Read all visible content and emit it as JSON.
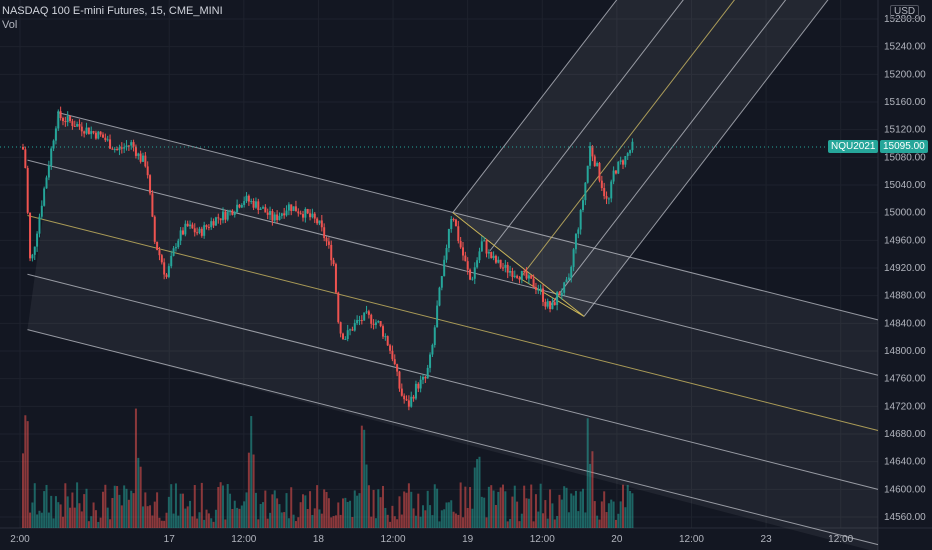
{
  "header": {
    "symbol_line": "NASDAQ 100 E-mini Futures, 15, CME_MINI",
    "vol_label": "Vol"
  },
  "currency": "USD",
  "colors": {
    "background": "#131722",
    "up": "#26a69a",
    "down": "#ef5350",
    "grid": "#1e222d",
    "pitchfork_median": "#c9b458",
    "pitchfork_lines": "#b2b5be",
    "price_tag": "#26a69a",
    "symbol_tag": "#26a69a"
  },
  "chart_data": {
    "type": "candlestick",
    "interval": "15",
    "y_axis": {
      "ticks": [
        14560,
        14600,
        14640,
        14680,
        14720,
        14760,
        14800,
        14840,
        14880,
        14920,
        14960,
        15000,
        15040,
        15080,
        15120,
        15160,
        15200,
        15240,
        15280
      ],
      "tick_labels": [
        "14560.00",
        "14600.00",
        "14640.00",
        "14680.00",
        "14720.00",
        "14760.00",
        "14800.00",
        "14840.00",
        "14880.00",
        "14920.00",
        "14960.00",
        "15000.00",
        "15040.00",
        "15080.00",
        "15120.00",
        "15160.00",
        "15200.00",
        "15240.00",
        "15280.00"
      ],
      "range": [
        14540,
        15290
      ]
    },
    "x_axis": {
      "labels": [
        "2:00",
        "17",
        "12:00",
        "18",
        "12:00",
        "19",
        "12:00",
        "20",
        "12:00",
        "23",
        "12:00"
      ],
      "positions": [
        0,
        1,
        1.5,
        2,
        2.5,
        3,
        3.5,
        4,
        4.5,
        5,
        5.5
      ],
      "range": [
        0,
        5.75
      ]
    },
    "last_price": {
      "value": 15095.0,
      "label": "15095.00",
      "symbol_label": "NQU2021"
    },
    "path": [
      [
        0,
        15095
      ],
      [
        0.03,
        15090
      ],
      [
        0.07,
        14920
      ],
      [
        0.15,
        15020
      ],
      [
        0.25,
        15140
      ],
      [
        0.3,
        15135
      ],
      [
        0.45,
        15120
      ],
      [
        0.55,
        15110
      ],
      [
        0.65,
        15090
      ],
      [
        0.75,
        15100
      ],
      [
        0.8,
        15080
      ],
      [
        0.85,
        15070
      ],
      [
        0.9,
        14960
      ],
      [
        0.95,
        14930
      ],
      [
        0.98,
        14905
      ],
      [
        1.05,
        14960
      ],
      [
        1.12,
        14980
      ],
      [
        1.2,
        14970
      ],
      [
        1.3,
        14990
      ],
      [
        1.4,
        15000
      ],
      [
        1.5,
        15020
      ],
      [
        1.6,
        15010
      ],
      [
        1.7,
        14990
      ],
      [
        1.8,
        15010
      ],
      [
        1.9,
        15000
      ],
      [
        2.0,
        14985
      ],
      [
        2.05,
        14960
      ],
      [
        2.1,
        14930
      ],
      [
        2.14,
        14830
      ],
      [
        2.18,
        14820
      ],
      [
        2.25,
        14840
      ],
      [
        2.32,
        14850
      ],
      [
        2.4,
        14840
      ],
      [
        2.45,
        14820
      ],
      [
        2.5,
        14790
      ],
      [
        2.55,
        14740
      ],
      [
        2.6,
        14720
      ],
      [
        2.66,
        14750
      ],
      [
        2.72,
        14760
      ],
      [
        2.76,
        14800
      ],
      [
        2.8,
        14870
      ],
      [
        2.84,
        14920
      ],
      [
        2.88,
        14990
      ],
      [
        2.9,
        15000
      ],
      [
        2.94,
        14960
      ],
      [
        2.98,
        14930
      ],
      [
        3.02,
        14900
      ],
      [
        3.06,
        14930
      ],
      [
        3.1,
        14960
      ],
      [
        3.14,
        14940
      ],
      [
        3.18,
        14930
      ],
      [
        3.24,
        14920
      ],
      [
        3.3,
        14915
      ],
      [
        3.36,
        14910
      ],
      [
        3.42,
        14900
      ],
      [
        3.48,
        14890
      ],
      [
        3.52,
        14870
      ],
      [
        3.56,
        14860
      ],
      [
        3.6,
        14880
      ],
      [
        3.64,
        14890
      ],
      [
        3.68,
        14900
      ],
      [
        3.72,
        14960
      ],
      [
        3.76,
        15000
      ],
      [
        3.8,
        15060
      ],
      [
        3.82,
        15095
      ],
      [
        3.86,
        15070
      ],
      [
        3.9,
        15040
      ],
      [
        3.94,
        15010
      ],
      [
        3.98,
        15060
      ],
      [
        4.02,
        15070
      ],
      [
        4.06,
        15080
      ],
      [
        4.1,
        15095
      ]
    ],
    "pitchfork_1": {
      "pivot_a": [
        0.05,
        14920
      ],
      "pivot_b": [
        0.13,
        15145
      ],
      "pivot_c": [
        0.05,
        14920
      ],
      "note_levels": [
        "upper",
        "upper_mid",
        "median",
        "lower_mid",
        "lower"
      ]
    }
  }
}
